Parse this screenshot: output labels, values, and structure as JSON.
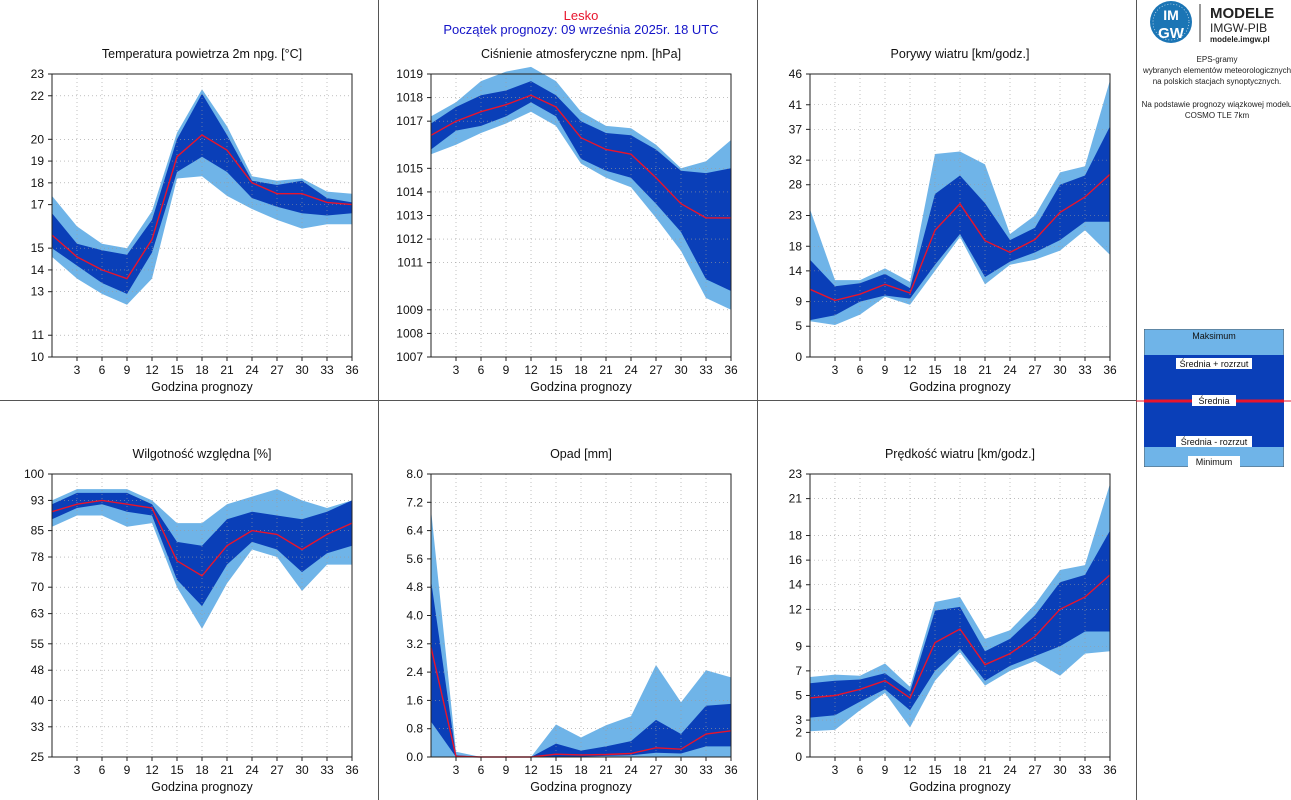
{
  "header": {
    "station": "Lesko",
    "forecast_start": "Początek prognozy: 09 września 2025r. 18 UTC"
  },
  "logo": {
    "title": "MODELE",
    "subtitle": "IMGW-PIB",
    "url": "modele.imgw.pl",
    "badge_top": "IM",
    "badge_bottom": "GW"
  },
  "info": {
    "lines": [
      "EPS-gramy",
      "wybranych elementów meteorologicznych",
      "na polskich stacjach  synoptycznych.",
      "",
      "Na podstawie prognozy wiązkowej modelu",
      "COSMO TLE 7km"
    ]
  },
  "legend": {
    "max": "Maksimum",
    "mean_plus": "Średnia + rozrzut",
    "mean": "Średnia",
    "mean_minus": "Średnia - rozrzut",
    "min": "Minimum"
  },
  "colors": {
    "outer": "#6fb4e8",
    "inner": "#0a3fb8",
    "mean": "#e8142c",
    "station": "#e8142c",
    "forecast": "#1414c8"
  },
  "chart_data": [
    {
      "id": "temp",
      "type": "area",
      "title": "Temperatura powietrza 2m npg. [°C]",
      "xlabel": "Godzina prognozy",
      "x": [
        0,
        3,
        6,
        9,
        12,
        15,
        18,
        21,
        24,
        27,
        30,
        33,
        36
      ],
      "xticks": [
        3,
        6,
        9,
        12,
        15,
        18,
        21,
        24,
        27,
        30,
        33,
        36
      ],
      "ylim": [
        10,
        23
      ],
      "yticks": [
        10,
        11,
        13,
        14,
        15,
        17,
        18,
        19,
        20,
        22,
        23
      ],
      "ytick_labels": [
        "10",
        "11",
        "13",
        "14",
        "15",
        "17",
        "18",
        "19",
        "20",
        "22",
        "23"
      ],
      "min": [
        14.6,
        13.6,
        12.9,
        12.4,
        13.6,
        18.2,
        18.3,
        17.4,
        16.8,
        16.3,
        15.9,
        16.1,
        16.1
      ],
      "low": [
        15.0,
        14.2,
        13.4,
        12.9,
        14.8,
        18.5,
        19.2,
        18.5,
        17.3,
        16.9,
        16.6,
        16.5,
        16.6
      ],
      "mean": [
        15.6,
        14.6,
        14.0,
        13.6,
        15.4,
        19.2,
        20.2,
        19.5,
        18.0,
        17.5,
        17.5,
        17.1,
        17.0
      ],
      "high": [
        16.6,
        15.2,
        14.9,
        14.7,
        16.3,
        20.0,
        22.1,
        20.2,
        18.1,
        17.9,
        18.1,
        17.3,
        17.1
      ],
      "max": [
        17.4,
        16.0,
        15.2,
        15.0,
        16.7,
        20.3,
        22.3,
        20.6,
        18.3,
        18.1,
        18.2,
        17.6,
        17.5
      ]
    },
    {
      "id": "pressure",
      "type": "area",
      "title": "Ciśnienie atmosferyczne npm. [hPa]",
      "xlabel": "Godzina prognozy",
      "x": [
        0,
        3,
        6,
        9,
        12,
        15,
        18,
        21,
        24,
        27,
        30,
        33,
        36
      ],
      "xticks": [
        3,
        6,
        9,
        12,
        15,
        18,
        21,
        24,
        27,
        30,
        33,
        36
      ],
      "ylim": [
        1007,
        1019
      ],
      "yticks": [
        1007,
        1008,
        1009,
        1011,
        1012,
        1013,
        1014,
        1015,
        1017,
        1018,
        1019
      ],
      "ytick_labels": [
        "1007",
        "1008",
        "1009",
        "1011",
        "1012",
        "1013",
        "1014",
        "1015",
        "1017",
        "1018",
        "1019"
      ],
      "min": [
        1015.6,
        1016.0,
        1016.5,
        1016.9,
        1017.4,
        1016.8,
        1015.2,
        1014.6,
        1014.2,
        1012.9,
        1011.5,
        1009.5,
        1009.0
      ],
      "low": [
        1015.8,
        1016.6,
        1016.8,
        1017.2,
        1017.8,
        1017.2,
        1015.4,
        1014.9,
        1014.6,
        1013.5,
        1012.3,
        1010.3,
        1009.8
      ],
      "mean": [
        1016.4,
        1017.0,
        1017.4,
        1017.7,
        1018.1,
        1017.6,
        1016.3,
        1015.8,
        1015.6,
        1014.6,
        1013.5,
        1012.9,
        1012.9
      ],
      "high": [
        1016.9,
        1017.6,
        1018.1,
        1018.3,
        1018.7,
        1018.1,
        1017.0,
        1016.5,
        1016.4,
        1015.8,
        1014.9,
        1014.8,
        1015.0
      ],
      "max": [
        1017.2,
        1017.8,
        1018.7,
        1019.1,
        1019.3,
        1018.7,
        1017.4,
        1016.8,
        1016.7,
        1016.0,
        1015.0,
        1015.3,
        1016.2
      ]
    },
    {
      "id": "gusts",
      "type": "area",
      "title": "Porywy wiatru [km/godz.]",
      "xlabel": "Godzina prognozy",
      "x": [
        0,
        3,
        6,
        9,
        12,
        15,
        18,
        21,
        24,
        27,
        30,
        33,
        36
      ],
      "xticks": [
        3,
        6,
        9,
        12,
        15,
        18,
        21,
        24,
        27,
        30,
        33,
        36
      ],
      "ylim": [
        0,
        46
      ],
      "yticks": [
        0,
        5,
        9,
        14,
        18,
        23,
        28,
        32,
        37,
        41,
        46
      ],
      "ytick_labels": [
        "0",
        "5",
        "9",
        "14",
        "18",
        "23",
        "28",
        "32",
        "37",
        "41",
        "46"
      ],
      "min": [
        5.8,
        5.2,
        6.9,
        9.8,
        8.5,
        14.0,
        19.5,
        11.8,
        15.0,
        15.8,
        17.3,
        20.6,
        16.6
      ],
      "low": [
        6.0,
        6.8,
        9.0,
        10.0,
        9.5,
        15.0,
        20.0,
        13.0,
        15.5,
        17.0,
        19.0,
        22.0,
        22.0
      ],
      "mean": [
        11.0,
        9.2,
        10.2,
        11.8,
        10.4,
        20.6,
        24.9,
        18.9,
        17.0,
        19.1,
        23.5,
        26.0,
        29.7
      ],
      "high": [
        15.8,
        11.5,
        12.0,
        13.5,
        11.2,
        26.5,
        29.5,
        25.0,
        19.0,
        21.0,
        28.0,
        29.5,
        37.5
      ],
      "max": [
        24.0,
        12.5,
        12.5,
        14.4,
        12.2,
        33.0,
        33.4,
        31.3,
        20.0,
        23.0,
        30.0,
        31.0,
        45.0
      ]
    },
    {
      "id": "humidity",
      "type": "area",
      "title": "Wilgotność względna [%]",
      "xlabel": "Godzina prognozy",
      "x": [
        0,
        3,
        6,
        9,
        12,
        15,
        18,
        21,
        24,
        27,
        30,
        33,
        36
      ],
      "xticks": [
        3,
        6,
        9,
        12,
        15,
        18,
        21,
        24,
        27,
        30,
        33,
        36
      ],
      "ylim": [
        25,
        100
      ],
      "yticks": [
        25,
        33,
        40,
        48,
        55,
        63,
        70,
        78,
        85,
        93,
        100
      ],
      "ytick_labels": [
        "25",
        "33",
        "40",
        "48",
        "55",
        "63",
        "70",
        "78",
        "85",
        "93",
        "100"
      ],
      "min": [
        86,
        89,
        89,
        86,
        87,
        70,
        59,
        71,
        80,
        78,
        69,
        76,
        76
      ],
      "low": [
        88,
        91,
        92,
        90,
        89,
        72,
        65,
        76,
        82,
        80,
        74,
        79,
        81
      ],
      "mean": [
        90,
        92,
        93,
        92,
        91,
        77,
        73,
        81,
        85,
        84,
        80,
        84,
        87
      ],
      "high": [
        92,
        95,
        95,
        95,
        92,
        82,
        81,
        88,
        90,
        89,
        88,
        90,
        93
      ],
      "max": [
        93,
        96,
        96,
        96,
        93,
        87,
        87,
        92,
        94,
        96,
        93,
        91,
        93
      ]
    },
    {
      "id": "precip",
      "type": "area",
      "title": "Opad [mm]",
      "xlabel": "Godzina prognozy",
      "x": [
        0,
        3,
        6,
        9,
        12,
        15,
        18,
        21,
        24,
        27,
        30,
        33,
        36
      ],
      "xticks": [
        3,
        6,
        9,
        12,
        15,
        18,
        21,
        24,
        27,
        30,
        33,
        36
      ],
      "ylim": [
        0,
        8
      ],
      "yticks": [
        0,
        0.8,
        1.6,
        2.4,
        3.2,
        4.0,
        4.8,
        5.6,
        6.4,
        7.2,
        8.0
      ],
      "ytick_labels": [
        "0.0",
        "0.8",
        "1.6",
        "2.4",
        "3.2",
        "4.0",
        "4.8",
        "5.6",
        "6.4",
        "7.2",
        "8.0"
      ],
      "min": [
        0,
        0,
        0,
        0,
        0,
        0,
        0,
        0,
        0,
        0,
        0,
        0,
        0
      ],
      "low": [
        1.0,
        0,
        0,
        0,
        0,
        0.01,
        0.01,
        0.03,
        0.05,
        0.12,
        0.1,
        0.3,
        0.3
      ],
      "mean": [
        3.1,
        0.02,
        0,
        0,
        0,
        0.08,
        0.06,
        0.07,
        0.1,
        0.26,
        0.22,
        0.65,
        0.74
      ],
      "high": [
        5.0,
        0.05,
        0,
        0,
        0,
        0.38,
        0.18,
        0.3,
        0.45,
        1.05,
        0.65,
        1.45,
        1.5
      ],
      "max": [
        7.0,
        0.15,
        0,
        0,
        0,
        0.92,
        0.55,
        0.9,
        1.15,
        2.6,
        1.55,
        2.45,
        2.25
      ]
    },
    {
      "id": "wind",
      "type": "area",
      "title": "Prędkość wiatru [km/godz.]",
      "xlabel": "Godzina prognozy",
      "x": [
        0,
        3,
        6,
        9,
        12,
        15,
        18,
        21,
        24,
        27,
        30,
        33,
        36
      ],
      "xticks": [
        3,
        6,
        9,
        12,
        15,
        18,
        21,
        24,
        27,
        30,
        33,
        36
      ],
      "ylim": [
        0,
        23
      ],
      "yticks": [
        0,
        2,
        3,
        5,
        7,
        9,
        12,
        14,
        16,
        18,
        21,
        23
      ],
      "ytick_labels": [
        "0",
        "2",
        "3",
        "5",
        "7",
        "9",
        "12",
        "14",
        "16",
        "18",
        "21",
        "23"
      ],
      "min": [
        2.1,
        2.2,
        3.8,
        5.2,
        2.4,
        6.2,
        8.5,
        5.8,
        7.0,
        7.8,
        6.6,
        8.4,
        8.6
      ],
      "low": [
        3.2,
        3.4,
        4.5,
        5.5,
        3.8,
        7.0,
        8.8,
        6.2,
        7.4,
        8.2,
        9.0,
        10.2,
        10.2
      ],
      "mean": [
        4.8,
        5.0,
        5.5,
        6.2,
        4.8,
        9.3,
        10.4,
        7.5,
        8.4,
        9.8,
        12.0,
        13.0,
        14.8
      ],
      "high": [
        6.0,
        6.2,
        6.3,
        6.8,
        5.3,
        11.9,
        12.2,
        8.6,
        9.6,
        11.5,
        14.2,
        14.8,
        18.4
      ],
      "max": [
        6.5,
        6.7,
        6.6,
        7.6,
        5.7,
        12.6,
        13.0,
        9.6,
        10.3,
        12.4,
        15.2,
        15.6,
        22.2
      ]
    }
  ]
}
